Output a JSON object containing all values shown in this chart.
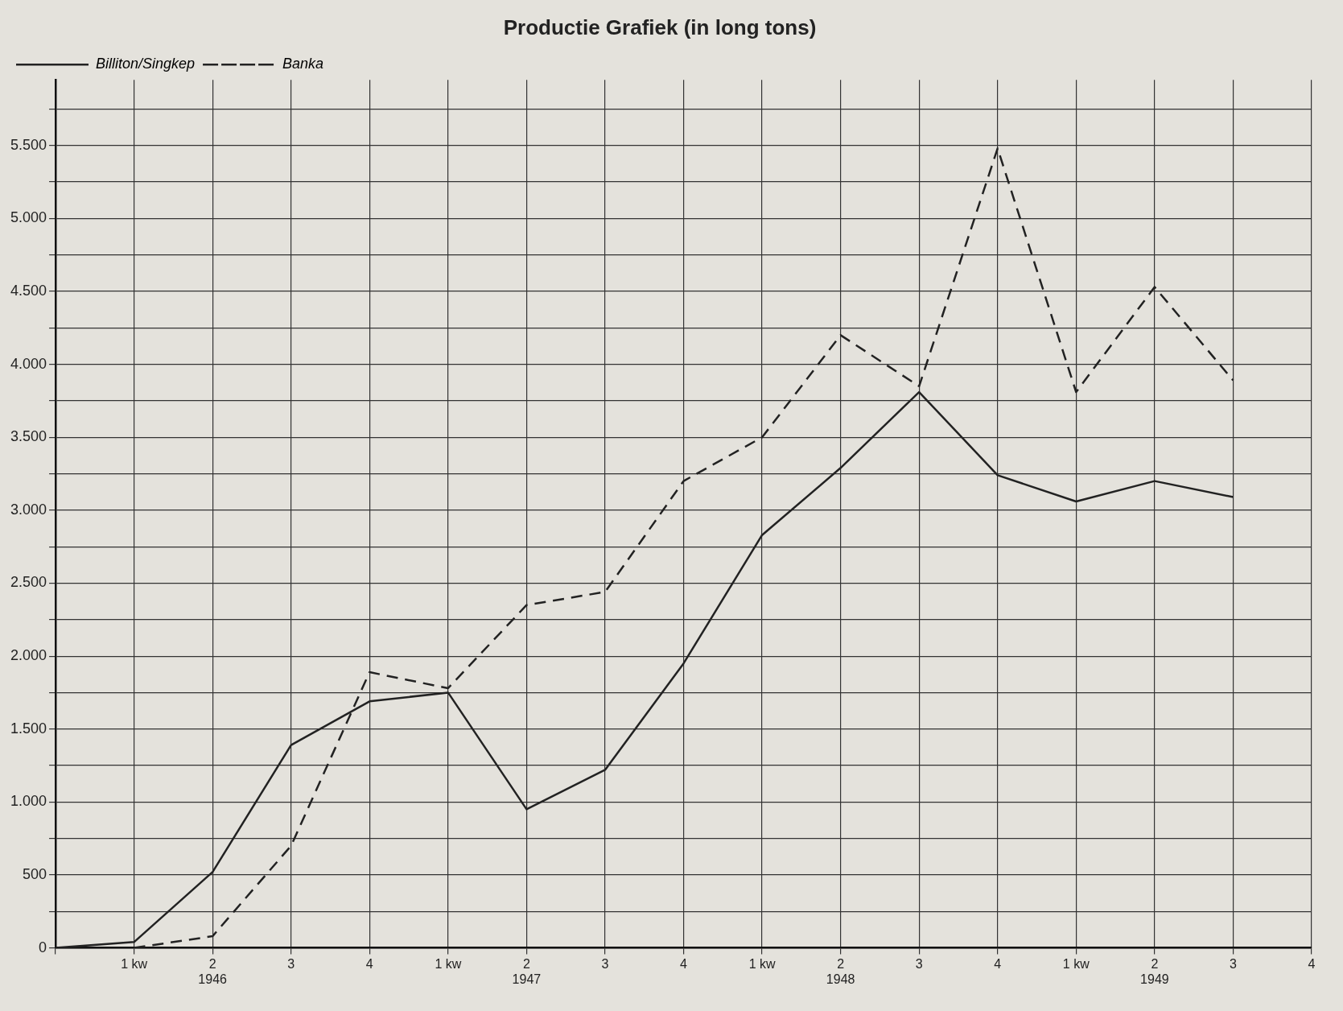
{
  "chart_data": {
    "type": "line",
    "title": "Productie Grafiek (in long tons)",
    "categories": [
      null,
      "1 kw",
      "2\n1946",
      "3",
      "4",
      "1 kw",
      "2\n1947",
      "3",
      "4",
      "1 kw",
      "2\n1948",
      "3",
      "4",
      "1 kw",
      "2\n1949",
      "3",
      "4"
    ],
    "series": [
      {
        "name": "Billiton/Singkep",
        "color": "#222222",
        "line_style": "solid",
        "values": [
          0,
          40,
          520,
          1390,
          1690,
          1750,
          950,
          1220,
          1950,
          2830,
          3290,
          3810,
          3240,
          3060,
          3200,
          3090,
          null
        ]
      },
      {
        "name": "Banka",
        "color": "#222222",
        "line_style": "dashed",
        "values": [
          null,
          0,
          80,
          700,
          1890,
          1780,
          2350,
          2440,
          3200,
          3500,
          4200,
          3850,
          5480,
          3810,
          4530,
          3890,
          null
        ]
      }
    ],
    "ylim": [
      0,
      5950
    ],
    "yticks": [
      {
        "value": 0,
        "label": "0"
      },
      {
        "value": 250,
        "label": null
      },
      {
        "value": 500,
        "label": "500"
      },
      {
        "value": 750,
        "label": null
      },
      {
        "value": 1000,
        "label": "1.000"
      },
      {
        "value": 1250,
        "label": null
      },
      {
        "value": 1500,
        "label": "1.500"
      },
      {
        "value": 1750,
        "label": null
      },
      {
        "value": 2000,
        "label": "2.000"
      },
      {
        "value": 2250,
        "label": null
      },
      {
        "value": 2500,
        "label": "2.500"
      },
      {
        "value": 2750,
        "label": null
      },
      {
        "value": 3000,
        "label": "3.000"
      },
      {
        "value": 3250,
        "label": null
      },
      {
        "value": 3500,
        "label": "3.500"
      },
      {
        "value": 3750,
        "label": null
      },
      {
        "value": 4000,
        "label": "4.000"
      },
      {
        "value": 4250,
        "label": null
      },
      {
        "value": 4500,
        "label": "4.500"
      },
      {
        "value": 4750,
        "label": null
      },
      {
        "value": 5000,
        "label": "5.000"
      },
      {
        "value": 5250,
        "label": null
      },
      {
        "value": 5500,
        "label": "5.500"
      },
      {
        "value": 5750,
        "label": null
      }
    ],
    "grid": true,
    "legend": "top left"
  }
}
